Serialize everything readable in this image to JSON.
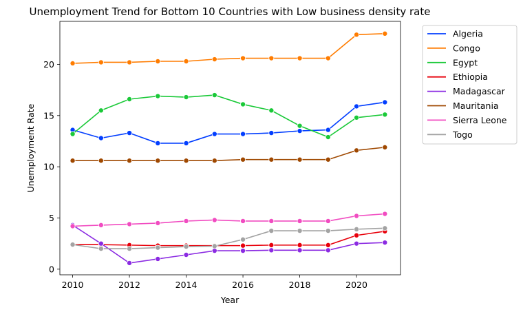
{
  "chart_data": {
    "type": "line",
    "title": "Unemployment Trend for Bottom 10 Countries with Low business density rate",
    "xlabel": "Year",
    "ylabel": "Unemployment Rate",
    "xlim": [
      2009.55,
      2021.55
    ],
    "ylim": [
      -0.55,
      24.2
    ],
    "x_ticks": [
      2010,
      2012,
      2014,
      2016,
      2018,
      2020
    ],
    "y_ticks": [
      0,
      5,
      10,
      15,
      20
    ],
    "grid": false,
    "legend_position": "outside-top-right",
    "x": [
      2010,
      2011,
      2012,
      2013,
      2014,
      2015,
      2016,
      2017,
      2018,
      2019,
      2020,
      2021
    ],
    "series": [
      {
        "name": "Algeria",
        "color": "#023eff",
        "values": [
          13.6,
          12.8,
          13.3,
          12.3,
          12.3,
          13.2,
          13.2,
          13.3,
          13.5,
          13.6,
          15.9,
          16.3
        ]
      },
      {
        "name": "Congo",
        "color": "#ff7c00",
        "values": [
          20.1,
          20.2,
          20.2,
          20.3,
          20.3,
          20.5,
          20.6,
          20.6,
          20.6,
          20.6,
          22.9,
          23.0
        ]
      },
      {
        "name": "Egypt",
        "color": "#1ac938",
        "values": [
          13.2,
          15.5,
          16.6,
          16.9,
          16.8,
          17.0,
          16.1,
          15.5,
          14.0,
          12.9,
          14.8,
          15.1
        ]
      },
      {
        "name": "Ethiopia",
        "color": "#e8000b",
        "values": [
          2.4,
          2.4,
          2.35,
          2.3,
          2.3,
          2.3,
          2.3,
          2.35,
          2.35,
          2.35,
          3.3,
          3.7
        ]
      },
      {
        "name": "Madagascar",
        "color": "#8b2be2",
        "values": [
          4.3,
          2.5,
          0.6,
          1.0,
          1.4,
          1.8,
          1.8,
          1.85,
          1.85,
          1.85,
          2.5,
          2.6
        ]
      },
      {
        "name": "Mauritania",
        "color": "#9f4800",
        "values": [
          10.6,
          10.6,
          10.6,
          10.6,
          10.6,
          10.6,
          10.7,
          10.7,
          10.7,
          10.7,
          11.6,
          11.9
        ]
      },
      {
        "name": "Sierra Leone",
        "color": "#f14cc1",
        "values": [
          4.2,
          4.3,
          4.4,
          4.5,
          4.7,
          4.8,
          4.7,
          4.7,
          4.7,
          4.7,
          5.2,
          5.4
        ]
      },
      {
        "name": "Togo",
        "color": "#a3a3a3",
        "values": [
          2.4,
          2.0,
          2.0,
          2.1,
          2.2,
          2.25,
          2.9,
          3.75,
          3.75,
          3.75,
          3.9,
          4.0
        ]
      }
    ]
  }
}
